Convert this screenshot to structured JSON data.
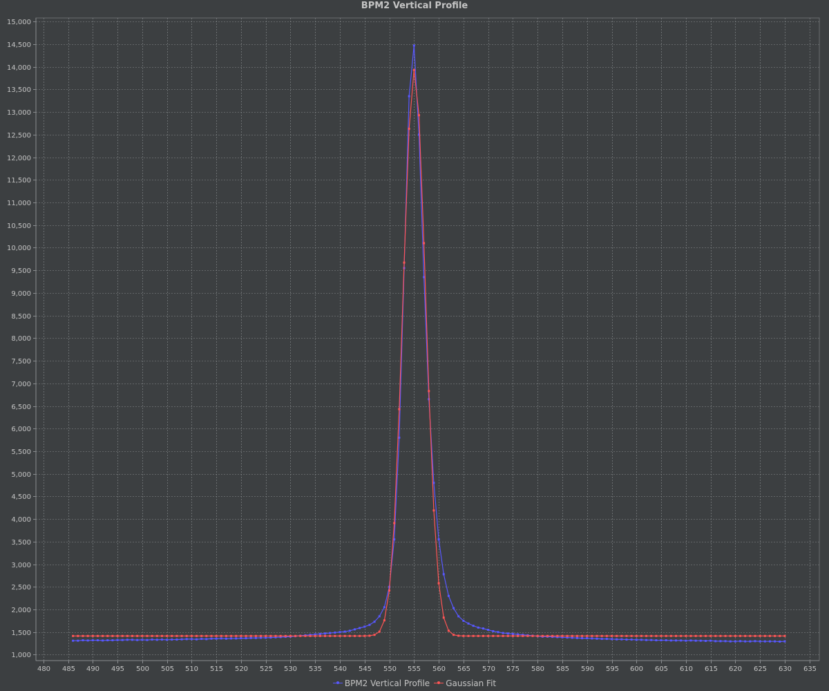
{
  "chart_data": {
    "type": "line",
    "title": "BPM2 Vertical Profile",
    "xlabel": "",
    "ylabel": "",
    "xlim": [
      478.5,
      637
    ],
    "ylim": [
      870,
      15080
    ],
    "x_ticks": [
      480,
      485,
      490,
      495,
      500,
      505,
      510,
      515,
      520,
      525,
      530,
      535,
      540,
      545,
      550,
      555,
      560,
      565,
      570,
      575,
      580,
      585,
      590,
      595,
      600,
      605,
      610,
      615,
      620,
      625,
      630,
      635
    ],
    "x_tick_labels": [
      "480",
      "485",
      "490",
      "495",
      "500",
      "505",
      "510",
      "515",
      "520",
      "525",
      "530",
      "535",
      "540",
      "545",
      "550",
      "555",
      "560",
      "565",
      "570",
      "575",
      "580",
      "585",
      "590",
      "595",
      "600",
      "605",
      "610",
      "615",
      "620",
      "625",
      "630",
      "635"
    ],
    "y_ticks": [
      1000,
      1500,
      2000,
      2500,
      3000,
      3500,
      4000,
      4500,
      5000,
      5500,
      6000,
      6500,
      7000,
      7500,
      8000,
      8500,
      9000,
      9500,
      10000,
      10500,
      11000,
      11500,
      12000,
      12500,
      13000,
      13500,
      14000,
      14500,
      15000
    ],
    "y_tick_labels": [
      "1,000",
      "1,500",
      "2,000",
      "2,500",
      "3,000",
      "3,500",
      "4,000",
      "4,500",
      "5,000",
      "5,500",
      "6,000",
      "6,500",
      "7,000",
      "7,500",
      "8,000",
      "8,500",
      "9,000",
      "9,500",
      "10,000",
      "10,500",
      "11,000",
      "11,500",
      "12,000",
      "12,500",
      "13,000",
      "13,500",
      "14,000",
      "14,500",
      "15,000"
    ],
    "grid": true,
    "legend_position": "bottom-center",
    "series": [
      {
        "name": "BPM2 Vertical Profile",
        "color": "#5858ff",
        "x": [
          486,
          487,
          488,
          489,
          490,
          491,
          492,
          493,
          494,
          495,
          496,
          497,
          498,
          499,
          500,
          501,
          502,
          503,
          504,
          505,
          506,
          507,
          508,
          509,
          510,
          511,
          512,
          513,
          514,
          515,
          516,
          517,
          518,
          519,
          520,
          521,
          522,
          523,
          524,
          525,
          526,
          527,
          528,
          529,
          530,
          531,
          532,
          533,
          534,
          535,
          536,
          537,
          538,
          539,
          540,
          541,
          542,
          543,
          544,
          545,
          546,
          547,
          548,
          549,
          550,
          551,
          552,
          553,
          554,
          555,
          556,
          557,
          558,
          559,
          560,
          561,
          562,
          563,
          564,
          565,
          566,
          567,
          568,
          569,
          570,
          571,
          572,
          573,
          574,
          575,
          576,
          577,
          578,
          579,
          580,
          581,
          582,
          583,
          584,
          585,
          586,
          587,
          588,
          589,
          590,
          591,
          592,
          593,
          594,
          595,
          596,
          597,
          598,
          599,
          600,
          601,
          602,
          603,
          604,
          605,
          606,
          607,
          608,
          609,
          610,
          611,
          612,
          613,
          614,
          615,
          616,
          617,
          618,
          619,
          620,
          621,
          622,
          623,
          624,
          625,
          626,
          627,
          628,
          629,
          630
        ],
        "y": [
          1310,
          1310,
          1320,
          1315,
          1320,
          1320,
          1315,
          1320,
          1320,
          1325,
          1325,
          1330,
          1330,
          1325,
          1330,
          1325,
          1335,
          1330,
          1335,
          1330,
          1335,
          1335,
          1340,
          1345,
          1345,
          1340,
          1350,
          1345,
          1355,
          1355,
          1360,
          1355,
          1360,
          1360,
          1365,
          1365,
          1370,
          1370,
          1375,
          1375,
          1380,
          1385,
          1390,
          1395,
          1400,
          1410,
          1420,
          1430,
          1440,
          1450,
          1460,
          1470,
          1480,
          1490,
          1500,
          1510,
          1530,
          1560,
          1590,
          1620,
          1660,
          1730,
          1850,
          2050,
          2500,
          3550,
          5800,
          9550,
          13350,
          14470,
          12500,
          9350,
          6650,
          4800,
          3550,
          2780,
          2300,
          2030,
          1850,
          1750,
          1690,
          1640,
          1600,
          1580,
          1550,
          1520,
          1500,
          1480,
          1470,
          1460,
          1450,
          1440,
          1430,
          1420,
          1410,
          1400,
          1400,
          1395,
          1390,
          1385,
          1380,
          1375,
          1370,
          1365,
          1365,
          1360,
          1355,
          1350,
          1350,
          1345,
          1340,
          1340,
          1335,
          1335,
          1330,
          1330,
          1325,
          1325,
          1320,
          1320,
          1320,
          1315,
          1315,
          1315,
          1310,
          1315,
          1310,
          1310,
          1305,
          1310,
          1300,
          1300,
          1300,
          1295,
          1295,
          1300,
          1295,
          1295,
          1300,
          1295,
          1295,
          1295,
          1295,
          1290,
          1295
        ],
        "markers": true
      },
      {
        "name": "Gaussian Fit",
        "color": "#ff5555",
        "x": [
          486,
          487,
          488,
          489,
          490,
          491,
          492,
          493,
          494,
          495,
          496,
          497,
          498,
          499,
          500,
          501,
          502,
          503,
          504,
          505,
          506,
          507,
          508,
          509,
          510,
          511,
          512,
          513,
          514,
          515,
          516,
          517,
          518,
          519,
          520,
          521,
          522,
          523,
          524,
          525,
          526,
          527,
          528,
          529,
          530,
          531,
          532,
          533,
          534,
          535,
          536,
          537,
          538,
          539,
          540,
          541,
          542,
          543,
          544,
          545,
          546,
          547,
          548,
          549,
          550,
          551,
          552,
          553,
          554,
          555,
          556,
          557,
          558,
          559,
          560,
          561,
          562,
          563,
          564,
          565,
          566,
          567,
          568,
          569,
          570,
          571,
          572,
          573,
          574,
          575,
          576,
          577,
          578,
          579,
          580,
          581,
          582,
          583,
          584,
          585,
          586,
          587,
          588,
          589,
          590,
          591,
          592,
          593,
          594,
          595,
          596,
          597,
          598,
          599,
          600,
          601,
          602,
          603,
          604,
          605,
          606,
          607,
          608,
          609,
          610,
          611,
          612,
          613,
          614,
          615,
          616,
          617,
          618,
          619,
          620,
          621,
          622,
          623,
          624,
          625,
          626,
          627,
          628,
          629,
          630
        ],
        "y": [
          1415,
          1415,
          1415,
          1415,
          1415,
          1415,
          1415,
          1415,
          1415,
          1415,
          1415,
          1415,
          1415,
          1415,
          1415,
          1415,
          1415,
          1415,
          1415,
          1415,
          1415,
          1415,
          1415,
          1415,
          1415,
          1415,
          1415,
          1415,
          1415,
          1415,
          1415,
          1415,
          1415,
          1415,
          1415,
          1415,
          1415,
          1415,
          1415,
          1415,
          1415,
          1415,
          1415,
          1415,
          1415,
          1415,
          1415,
          1415,
          1415,
          1415,
          1415,
          1415,
          1415,
          1415,
          1415,
          1415,
          1415,
          1415,
          1415,
          1416,
          1420,
          1440,
          1510,
          1760,
          2420,
          3910,
          6430,
          9670,
          12630,
          13930,
          12930,
          10100,
          6830,
          4190,
          2580,
          1820,
          1530,
          1440,
          1420,
          1415,
          1415,
          1415,
          1415,
          1415,
          1415,
          1415,
          1415,
          1415,
          1415,
          1415,
          1415,
          1415,
          1415,
          1415,
          1415,
          1415,
          1415,
          1415,
          1415,
          1415,
          1415,
          1415,
          1415,
          1415,
          1415,
          1415,
          1415,
          1415,
          1415,
          1415,
          1415,
          1415,
          1415,
          1415,
          1415,
          1415,
          1415,
          1415,
          1415,
          1415,
          1415,
          1415,
          1415,
          1415,
          1415,
          1415,
          1415,
          1415,
          1415,
          1415,
          1415,
          1415,
          1415,
          1415,
          1415,
          1415,
          1415,
          1415,
          1415,
          1415,
          1415,
          1415,
          1415,
          1415,
          1415
        ],
        "markers": true
      }
    ]
  }
}
